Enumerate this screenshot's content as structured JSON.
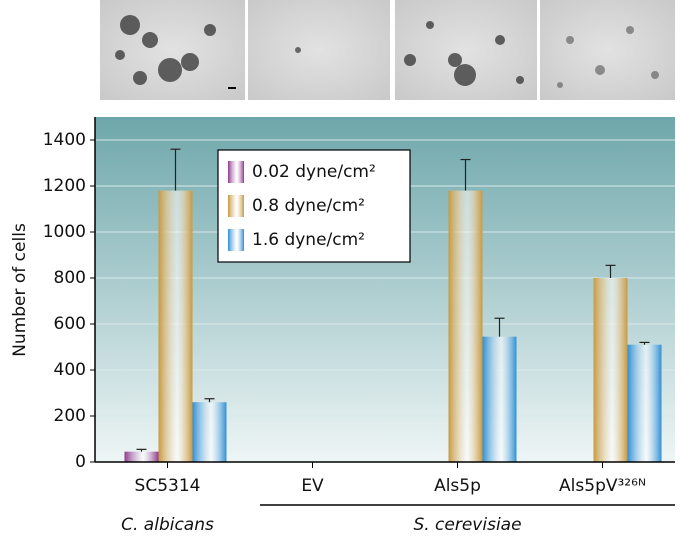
{
  "chart_data": {
    "type": "bar",
    "ylabel": "Number of cells",
    "categories": [
      "SC5314",
      "EV",
      "Als5p",
      "Als5pV³²⁶ᴺ"
    ],
    "groups": [
      {
        "label": "C. albicans",
        "categories": [
          0
        ]
      },
      {
        "label": "S. cerevisiae",
        "categories": [
          1,
          2,
          3
        ]
      }
    ],
    "series": [
      {
        "name": "0.02 dyne/cm²",
        "color": "#8e3a8e",
        "values": [
          45,
          null,
          null,
          null
        ],
        "errors": [
          10,
          null,
          null,
          null
        ]
      },
      {
        "name": "0.8 dyne/cm²",
        "color": "#c8993f",
        "values": [
          1180,
          null,
          1180,
          800
        ],
        "errors": [
          180,
          null,
          135,
          55
        ]
      },
      {
        "name": "1.6 dyne/cm²",
        "color": "#2f8fd4",
        "values": [
          260,
          null,
          545,
          510
        ],
        "errors": [
          15,
          null,
          80,
          10
        ]
      }
    ],
    "ylim": [
      0,
      1500
    ],
    "yticks": [
      0,
      200,
      400,
      600,
      800,
      1000,
      1200,
      1400
    ],
    "grid": true
  }
}
